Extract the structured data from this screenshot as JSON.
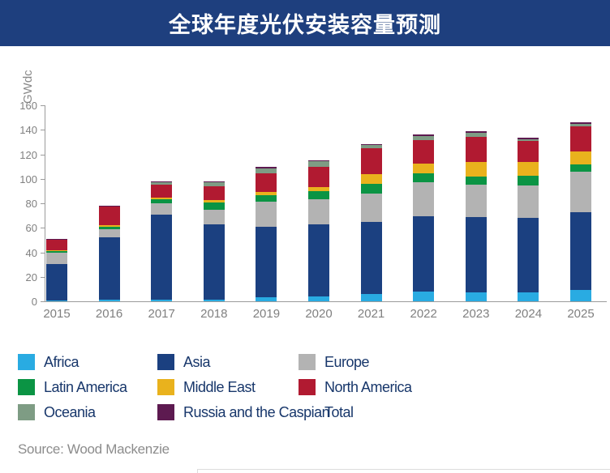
{
  "title": "全球年度光伏安装容量预测",
  "source_text": "Source: Wood Mackenzie",
  "colors": {
    "banner_bg": "#1e3f7e",
    "title_text": "#ffffff",
    "legend_text": "#18376b",
    "axis_text": "#808080",
    "axis_line": "#9b9b9b"
  },
  "legend": {
    "items": [
      {
        "label": "Africa",
        "color": "#29abe2"
      },
      {
        "label": "Asia",
        "color": "#1b4080"
      },
      {
        "label": "Europe",
        "color": "#b3b3b3"
      },
      {
        "label": "Latin America",
        "color": "#0b9444"
      },
      {
        "label": "Middle East",
        "color": "#e9b21d"
      },
      {
        "label": "North America",
        "color": "#b11a31"
      },
      {
        "label": "Oceania",
        "color": "#7e9c84"
      },
      {
        "label": "Russia and the Caspian",
        "color": "#5d1a50"
      },
      {
        "label": "Total",
        "color": null
      }
    ]
  },
  "chart_data": {
    "type": "bar",
    "stacked": true,
    "title": "全球年度光伏安装容量预测",
    "xlabel": "",
    "ylabel": "GWdc",
    "ylim": [
      0,
      160
    ],
    "y_tick_step": 20,
    "y_tick_labels": [
      "160",
      "140",
      "120",
      "100",
      "80",
      "60",
      "40",
      "20",
      "0"
    ],
    "grid": false,
    "legend_position": "bottom",
    "categories": [
      "2015",
      "2016",
      "2017",
      "2018",
      "2019",
      "2020",
      "2021",
      "2022",
      "2023",
      "2024",
      "2025"
    ],
    "series": [
      {
        "name": "Africa",
        "color": "#29abe2",
        "values": [
          0.5,
          1,
          1,
          1,
          3.5,
          4,
          6,
          8,
          7.5,
          7,
          9
        ]
      },
      {
        "name": "Asia",
        "color": "#1b4080",
        "values": [
          30,
          51,
          70,
          62,
          57,
          59,
          59,
          61.5,
          61,
          61,
          63.5
        ]
      },
      {
        "name": "Europe",
        "color": "#b3b3b3",
        "values": [
          9,
          7,
          9,
          12,
          21,
          20,
          23,
          28,
          27,
          26.5,
          33
        ]
      },
      {
        "name": "Latin America",
        "color": "#0b9444",
        "values": [
          1.5,
          2,
          3.5,
          5.5,
          5,
          7,
          8,
          7,
          6,
          8,
          6
        ]
      },
      {
        "name": "Middle East",
        "color": "#e9b21d",
        "values": [
          0.5,
          1,
          1,
          2,
          3,
          3,
          8,
          8,
          12,
          11.5,
          10.5
        ]
      },
      {
        "name": "North America",
        "color": "#b11a31",
        "values": [
          9,
          15.5,
          11,
          11.5,
          15,
          16.5,
          21,
          19,
          20.5,
          17,
          20.5
        ]
      },
      {
        "name": "Oceania",
        "color": "#7e9c84",
        "values": [
          0.3,
          0.4,
          2,
          3.5,
          4,
          5,
          2.5,
          3.5,
          3.5,
          1.5,
          2.5
        ]
      },
      {
        "name": "Russia and the Caspian",
        "color": "#5d1a50",
        "values": [
          0.2,
          0.1,
          0.5,
          0.5,
          1.5,
          0.5,
          1,
          1.5,
          1.5,
          1,
          1
        ]
      }
    ],
    "totals": [
      51,
      78,
      98,
      98,
      110,
      115,
      128.5,
      136.5,
      139,
      133.5,
      146
    ]
  }
}
